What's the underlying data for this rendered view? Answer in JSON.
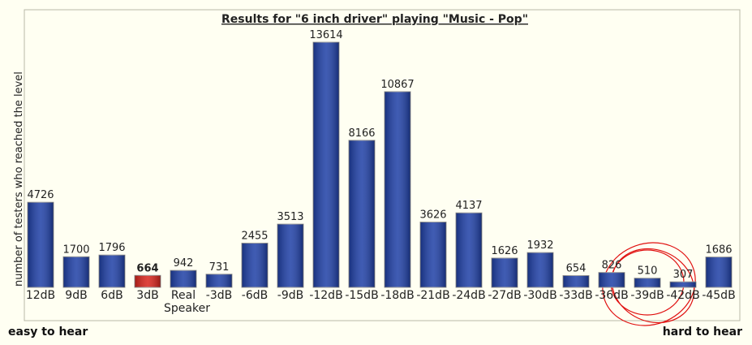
{
  "chart_data": {
    "type": "bar",
    "title": "Results for \"6 inch driver\" playing \"Music - Pop\"",
    "y_label": "number of testers who reached the level",
    "left_note": "easy to hear",
    "right_note": "hard to hear",
    "categories": [
      "12dB",
      "9dB",
      "6dB",
      "3dB",
      "Real Speaker",
      "-3dB",
      "-6dB",
      "-9dB",
      "-12dB",
      "-15dB",
      "-18dB",
      "-21dB",
      "-24dB",
      "-27dB",
      "-30dB",
      "-33dB",
      "-36dB",
      "-39dB",
      "-42dB",
      "-45dB"
    ],
    "values": [
      4726,
      1700,
      1796,
      664,
      942,
      731,
      2455,
      3513,
      13614,
      8166,
      10867,
      3626,
      4137,
      1626,
      1932,
      654,
      826,
      510,
      307,
      1686
    ],
    "color": "#1e3fa6",
    "colors": [
      "#1e3fa6",
      "#1e3fa6",
      "#1e3fa6",
      "#d8231a",
      "#1e3fa6",
      "#1e3fa6",
      "#1e3fa6",
      "#1e3fa6",
      "#1e3fa6",
      "#1e3fa6",
      "#1e3fa6",
      "#1e3fa6",
      "#1e3fa6",
      "#1e3fa6",
      "#1e3fa6",
      "#1e3fa6",
      "#1e3fa6",
      "#1e3fa6",
      "#1e3fa6",
      "#1e3fa6"
    ]
  }
}
